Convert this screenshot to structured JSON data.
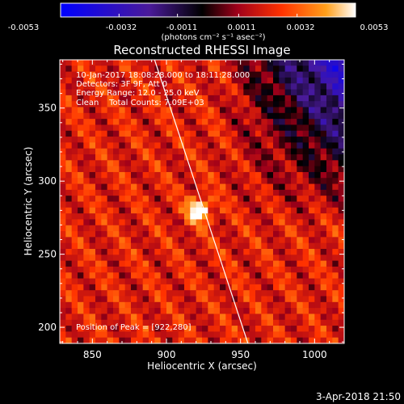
{
  "colorbar": {
    "tick_labels": [
      "-0.0053",
      "-0.0032",
      "-0.0011",
      "0.0011",
      "0.0032",
      "0.0053"
    ],
    "tick_values": [
      -0.0053,
      -0.0032,
      -0.0011,
      0.0011,
      0.0032,
      0.0053
    ],
    "range": [
      -0.0053,
      0.0053
    ],
    "unit_label": "(photons cm⁻² s⁻¹ asec⁻²)"
  },
  "chart_data": {
    "type": "heatmap",
    "title": "Reconstructed RHESSI Image",
    "xlabel": "Heliocentric X (arcsec)",
    "ylabel": "Heliocentric Y (arcsec)",
    "xlim": [
      828,
      1020
    ],
    "ylim": [
      189,
      383
    ],
    "x_ticks": [
      850,
      900,
      950,
      1000
    ],
    "x_tick_labels": [
      "850",
      "900",
      "950",
      "1000"
    ],
    "y_ticks": [
      200,
      250,
      300,
      350
    ],
    "y_tick_labels": [
      "200",
      "250",
      "300",
      "350"
    ],
    "annotations": [
      "10-Jan-2017 18:08:28.000 to 18:11:28.000",
      "Detectors: 3F 9F, Att 0",
      "Energy Range: 12.0 - 25.0 keV",
      "Clean    Total Counts: 7.09E+03"
    ],
    "peak_label": "Position of Peak = [922,280]",
    "peak_position": [
      922,
      280
    ],
    "limb_line": [
      [
        892,
        383
      ],
      [
        955,
        189
      ]
    ],
    "colormap": [
      "#0000ff",
      "#4a1a9a",
      "#000000",
      "#a0001a",
      "#ff3200",
      "#ff9f1a",
      "#ffffff"
    ],
    "grid": false
  },
  "footer": {
    "date": "3-Apr-2018 21:50"
  }
}
